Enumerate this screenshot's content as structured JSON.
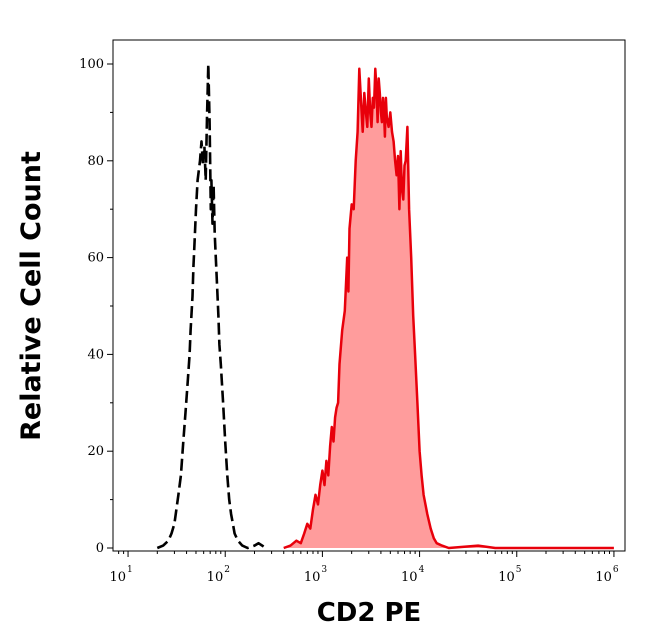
{
  "chart_data": {
    "type": "area",
    "title": "",
    "xlabel": "CD2 PE",
    "ylabel": "Relative Cell Count",
    "x_scale": "log",
    "xlim": [
      7,
      1300000
    ],
    "ylim": [
      0,
      105
    ],
    "x_ticks": [
      {
        "base": "10",
        "exp": "1",
        "value": 10
      },
      {
        "base": "10",
        "exp": "2",
        "value": 100
      },
      {
        "base": "10",
        "exp": "3",
        "value": 1000
      },
      {
        "base": "10",
        "exp": "4",
        "value": 10000
      },
      {
        "base": "10",
        "exp": "5",
        "value": 100000
      },
      {
        "base": "10",
        "exp": "6",
        "value": 1000000
      }
    ],
    "y_ticks": [
      "0",
      "20",
      "40",
      "60",
      "80",
      "100"
    ],
    "grid": false,
    "series": [
      {
        "style": "dashed-black",
        "color": "#000000",
        "points": [
          [
            20,
            0
          ],
          [
            23,
            0.5
          ],
          [
            26,
            1.5
          ],
          [
            28,
            3
          ],
          [
            30,
            5
          ],
          [
            33,
            11
          ],
          [
            35,
            15
          ],
          [
            37,
            22
          ],
          [
            39,
            28
          ],
          [
            41,
            34
          ],
          [
            43,
            40
          ],
          [
            44,
            45
          ],
          [
            46,
            52
          ],
          [
            47,
            58
          ],
          [
            48,
            62
          ],
          [
            50,
            70
          ],
          [
            52,
            76
          ],
          [
            55,
            80
          ],
          [
            57,
            84
          ],
          [
            59,
            79
          ],
          [
            61,
            83
          ],
          [
            63,
            76
          ],
          [
            65,
            89
          ],
          [
            67,
            100
          ],
          [
            69,
            88
          ],
          [
            71,
            70
          ],
          [
            72,
            76
          ],
          [
            74,
            67
          ],
          [
            76,
            75
          ],
          [
            78,
            65
          ],
          [
            80,
            60
          ],
          [
            82,
            55
          ],
          [
            85,
            48
          ],
          [
            87,
            42
          ],
          [
            90,
            38
          ],
          [
            95,
            30
          ],
          [
            100,
            22
          ],
          [
            105,
            15
          ],
          [
            110,
            10
          ],
          [
            115,
            7
          ],
          [
            120,
            5
          ],
          [
            125,
            3
          ],
          [
            135,
            1.5
          ],
          [
            150,
            0.5
          ],
          [
            170,
            0
          ],
          [
            200,
            0.5
          ],
          [
            220,
            1
          ],
          [
            240,
            0.5
          ],
          [
            260,
            0
          ]
        ]
      },
      {
        "style": "filled-red",
        "color": "#e8000b",
        "fill": "#ff9c9c",
        "points": [
          [
            400,
            0
          ],
          [
            470,
            0.5
          ],
          [
            540,
            1.5
          ],
          [
            600,
            1
          ],
          [
            650,
            3
          ],
          [
            700,
            5
          ],
          [
            750,
            4
          ],
          [
            800,
            8
          ],
          [
            850,
            11
          ],
          [
            900,
            9
          ],
          [
            950,
            13
          ],
          [
            1000,
            16
          ],
          [
            1050,
            13
          ],
          [
            1100,
            18
          ],
          [
            1150,
            15
          ],
          [
            1200,
            21
          ],
          [
            1250,
            25
          ],
          [
            1300,
            22
          ],
          [
            1350,
            27
          ],
          [
            1400,
            29
          ],
          [
            1450,
            30
          ],
          [
            1500,
            38
          ],
          [
            1600,
            45
          ],
          [
            1700,
            49
          ],
          [
            1800,
            60
          ],
          [
            1850,
            53
          ],
          [
            1900,
            66
          ],
          [
            2000,
            71
          ],
          [
            2100,
            70
          ],
          [
            2200,
            80
          ],
          [
            2300,
            86
          ],
          [
            2400,
            99
          ],
          [
            2500,
            92
          ],
          [
            2600,
            86
          ],
          [
            2700,
            94
          ],
          [
            2800,
            90
          ],
          [
            2900,
            87
          ],
          [
            3000,
            97
          ],
          [
            3100,
            90
          ],
          [
            3200,
            87
          ],
          [
            3300,
            93
          ],
          [
            3400,
            91
          ],
          [
            3500,
            99
          ],
          [
            3600,
            95
          ],
          [
            3700,
            88
          ],
          [
            3800,
            97
          ],
          [
            3900,
            94
          ],
          [
            4000,
            90
          ],
          [
            4100,
            88
          ],
          [
            4200,
            93
          ],
          [
            4300,
            90
          ],
          [
            4400,
            85
          ],
          [
            4500,
            93
          ],
          [
            4600,
            89
          ],
          [
            4800,
            87
          ],
          [
            5000,
            90
          ],
          [
            5200,
            86
          ],
          [
            5400,
            84
          ],
          [
            5600,
            80
          ],
          [
            5800,
            77
          ],
          [
            6000,
            81
          ],
          [
            6200,
            70
          ],
          [
            6400,
            82
          ],
          [
            6600,
            74
          ],
          [
            6800,
            72
          ],
          [
            7000,
            79
          ],
          [
            7200,
            80
          ],
          [
            7500,
            87
          ],
          [
            7800,
            70
          ],
          [
            8200,
            60
          ],
          [
            8600,
            48
          ],
          [
            9000,
            40
          ],
          [
            9500,
            30
          ],
          [
            10000,
            20
          ],
          [
            10500,
            15
          ],
          [
            11000,
            11
          ],
          [
            12000,
            7
          ],
          [
            13000,
            4
          ],
          [
            14000,
            2
          ],
          [
            15000,
            1
          ],
          [
            17000,
            0.5
          ],
          [
            20000,
            0
          ],
          [
            40000,
            0.5
          ],
          [
            60000,
            0
          ],
          [
            100000,
            0
          ],
          [
            1000000,
            0
          ]
        ]
      }
    ]
  }
}
